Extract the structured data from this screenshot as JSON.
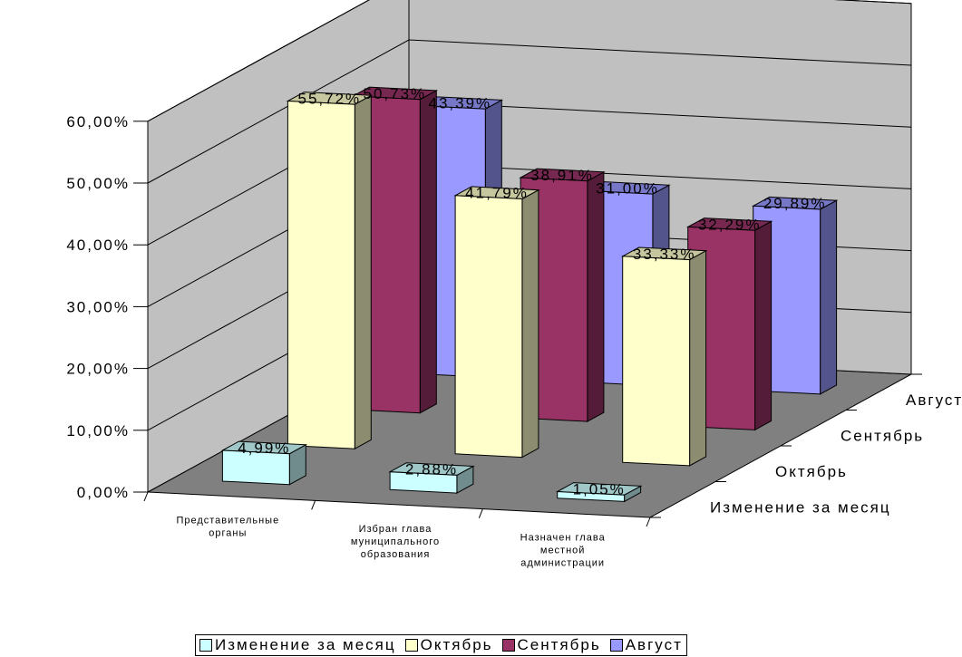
{
  "chart_data": {
    "type": "bar",
    "subtype": "3d-clustered-column",
    "title": "",
    "xlabel": "",
    "ylabel": "",
    "ylim": [
      0,
      60
    ],
    "y_ticks": [
      "0,00%",
      "10,00%",
      "20,00%",
      "30,00%",
      "40,00%",
      "50,00%",
      "60,00%"
    ],
    "categories": [
      [
        "Представительные",
        "органы"
      ],
      [
        "Избран глава",
        "муниципального",
        "образования"
      ],
      [
        "Назначен глава",
        "местной",
        "администрации"
      ]
    ],
    "depth_labels": [
      "Август",
      "Сентябрь",
      "Октябрь",
      "Изменение за месяц"
    ],
    "grid": true,
    "legend_position": "bottom",
    "series": [
      {
        "name": "Изменение за месяц",
        "values": [
          4.99,
          2.88,
          1.05
        ],
        "labels": [
          "4,99%",
          "2,88%",
          "1,05%"
        ],
        "color": "#ccffff"
      },
      {
        "name": "Октябрь",
        "values": [
          55.72,
          41.79,
          33.33
        ],
        "labels": [
          "55,72%",
          "41,79%",
          "33,33%"
        ],
        "color": "#ffffcc"
      },
      {
        "name": "Сентябрь",
        "values": [
          50.73,
          38.91,
          32.29
        ],
        "labels": [
          "50,73%",
          "38,91%",
          "32,29%"
        ],
        "color": "#993366"
      },
      {
        "name": "Август",
        "values": [
          43.39,
          31.0,
          29.89
        ],
        "labels": [
          "43,39%",
          "31,00%",
          "29,89%"
        ],
        "color": "#9999ff"
      }
    ],
    "wall_color": "#c0c0c0",
    "floor_color": "#808080"
  }
}
